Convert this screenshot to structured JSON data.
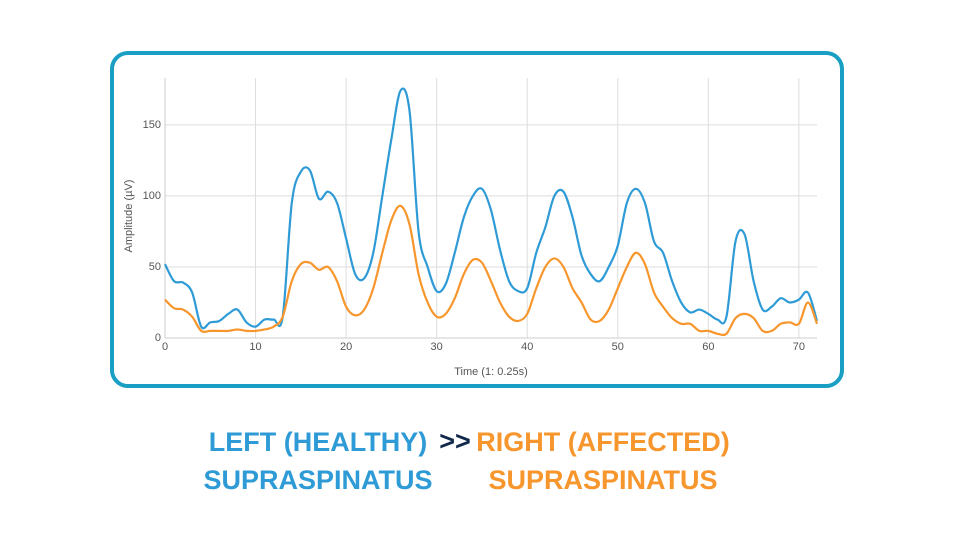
{
  "chart_data": {
    "type": "line",
    "ylabel": "Amplitude (µV)",
    "xlabel": "Time (1: 0.25s)",
    "x": [
      0,
      1,
      2,
      3,
      4,
      5,
      6,
      7,
      8,
      9,
      10,
      11,
      12,
      13,
      14,
      15,
      16,
      17,
      18,
      19,
      20,
      21,
      22,
      23,
      24,
      25,
      26,
      27,
      28,
      29,
      30,
      31,
      32,
      33,
      34,
      35,
      36,
      37,
      38,
      39,
      40,
      41,
      42,
      43,
      44,
      45,
      46,
      47,
      48,
      49,
      50,
      51,
      52,
      53,
      54,
      55,
      56,
      57,
      58,
      59,
      60,
      61,
      62,
      63,
      64,
      65,
      66,
      67,
      68,
      69,
      70,
      71,
      72
    ],
    "series": [
      {
        "name": "LEFT (HEALTHY) SUPRASPINATUS",
        "color": "#2e9bd6",
        "values": [
          52,
          40,
          39,
          32,
          8,
          11,
          12,
          17,
          20,
          11,
          8,
          13,
          13,
          15,
          95,
          117,
          118,
          98,
          103,
          95,
          70,
          45,
          42,
          60,
          100,
          140,
          174,
          160,
          75,
          50,
          33,
          38,
          60,
          85,
          100,
          105,
          90,
          62,
          40,
          33,
          35,
          60,
          78,
          100,
          103,
          85,
          58,
          45,
          40,
          50,
          65,
          95,
          105,
          95,
          68,
          60,
          40,
          25,
          18,
          20,
          17,
          13,
          15,
          68,
          73,
          40,
          20,
          22,
          28,
          25,
          27,
          32,
          12
        ]
      },
      {
        "name": "RIGHT (AFFECTED) SUPRASPINATUS",
        "color": "#f7962d",
        "values": [
          27,
          21,
          20,
          15,
          5,
          5,
          5,
          5,
          6,
          5,
          5,
          6,
          8,
          15,
          40,
          52,
          53,
          48,
          50,
          40,
          22,
          16,
          20,
          35,
          60,
          83,
          93,
          80,
          45,
          25,
          15,
          17,
          28,
          45,
          55,
          53,
          40,
          25,
          15,
          12,
          17,
          35,
          50,
          56,
          50,
          35,
          25,
          13,
          12,
          20,
          35,
          50,
          60,
          52,
          32,
          22,
          14,
          10,
          10,
          5,
          5,
          3,
          3,
          14,
          17,
          14,
          5,
          5,
          10,
          11,
          10,
          25,
          10
        ]
      }
    ],
    "xlim": [
      0,
      72
    ],
    "xticks": [
      0,
      10,
      20,
      30,
      40,
      50,
      60,
      70
    ],
    "ylim": [
      0,
      183
    ],
    "yticks": [
      0,
      50,
      100,
      150
    ],
    "grid": true,
    "separator": ">>",
    "separator_color": "#13294b"
  }
}
